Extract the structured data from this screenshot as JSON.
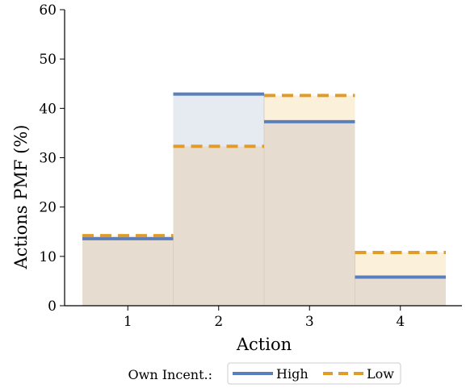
{
  "chart_data": {
    "type": "bar",
    "title": "",
    "xlabel": "Action",
    "ylabel": "Actions PMF (%)",
    "categories": [
      "1",
      "2",
      "3",
      "4"
    ],
    "ylim": [
      0,
      60
    ],
    "yticks": [
      0,
      10,
      20,
      30,
      40,
      50,
      60
    ],
    "grid": false,
    "legend": {
      "placement": "bottom-center",
      "title": "Own Incent.:"
    },
    "series": [
      {
        "name": "High",
        "values": [
          13.6,
          42.9,
          37.3,
          5.8
        ],
        "color": "#5b7fbc",
        "fill": "#e6ebf2",
        "line_style": "solid"
      },
      {
        "name": "Low",
        "values": [
          14.2,
          32.3,
          42.6,
          10.8
        ],
        "color": "#e09b28",
        "fill": "#fbf0da",
        "line_style": "dashed"
      }
    ],
    "overlap_fill": "#e6ddd0"
  }
}
